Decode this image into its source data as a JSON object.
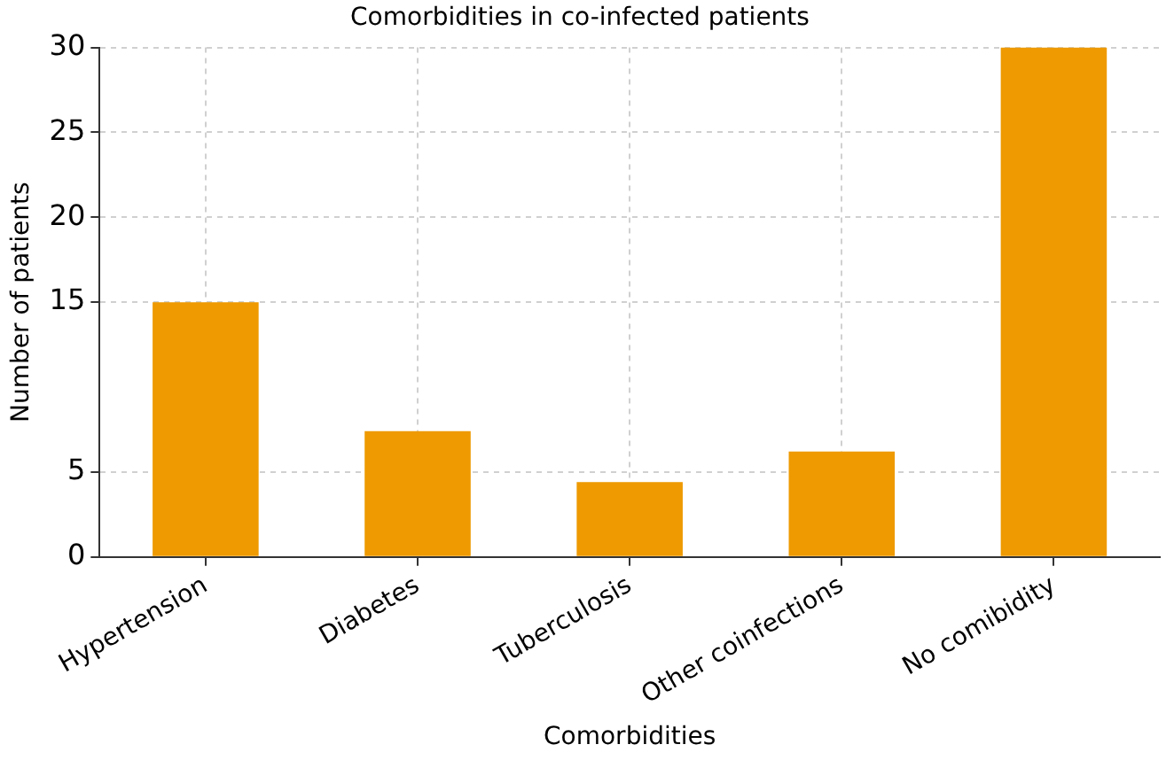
{
  "chart_data": {
    "type": "bar",
    "title": "Comorbidities in co-infected patients",
    "xlabel": "Comorbidities",
    "ylabel": "Number of patients",
    "categories": [
      "Hypertension",
      "Diabetes",
      "Tuberculosis",
      "Other coinfections",
      "No comibidity"
    ],
    "values": [
      15,
      7.4,
      4.4,
      6.2,
      30
    ],
    "color": "#ee9a00",
    "ylim": [
      0,
      30
    ],
    "yticks": [
      0,
      5,
      15,
      20,
      25,
      30
    ],
    "grid": true
  }
}
